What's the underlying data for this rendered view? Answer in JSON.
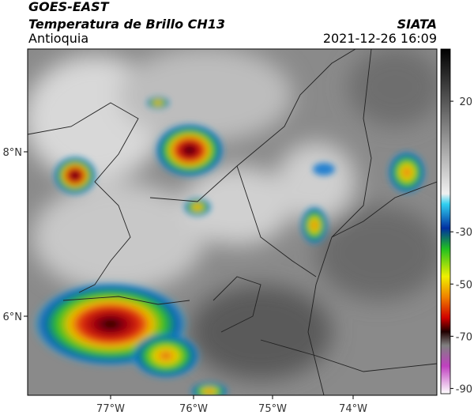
{
  "header": {
    "product": "GOES-EAST",
    "title": "Temperatura de Brillo CH13",
    "region": "Antioquia",
    "source": "SIATA",
    "datetime": "2021-12-26 16:09"
  },
  "map": {
    "lon_labels": [
      "77°W",
      "76°W",
      "75°W",
      "74°W"
    ],
    "lat_labels": [
      "8°N",
      "6°N"
    ]
  },
  "colorbar": {
    "lim": [
      -92,
      40
    ],
    "ticks": [
      20,
      -30,
      -50,
      -70,
      -90
    ]
  }
}
